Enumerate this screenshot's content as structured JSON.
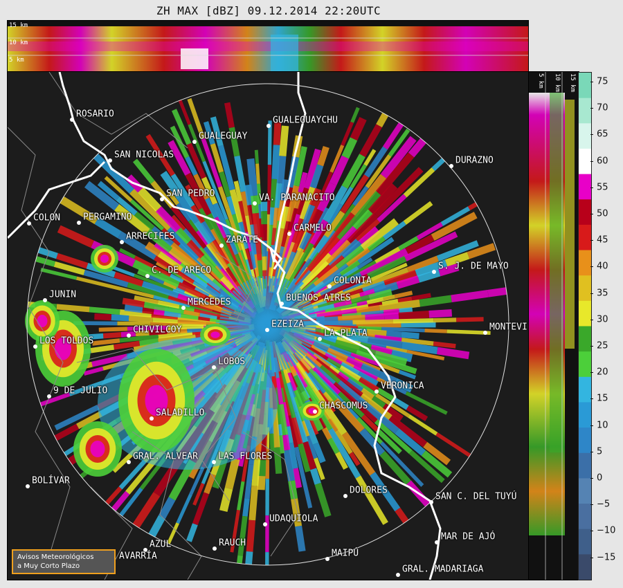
{
  "title": "ZH MAX [dBZ] 09.12.2014 22:20UTC",
  "top_altitudes": [
    "15 km",
    "10 km",
    "5 km"
  ],
  "side_altitudes": [
    "5 km",
    "10 km",
    "15 km"
  ],
  "colorbar_ticks": [
    "75",
    "70",
    "65",
    "60",
    "55",
    "50",
    "45",
    "40",
    "35",
    "30",
    "25",
    "20",
    "15",
    "10",
    "5",
    "0",
    "−5",
    "−10",
    "−15"
  ],
  "colorbar_colors": {
    "c-20": "#3a4a6a",
    "c-15": "#3f5f8a",
    "c-10": "#4a6fa0",
    "c-5": "#5583b3",
    "c0": "#3b6fa8",
    "c5": "#2e86c8",
    "c10": "#2a9ad6",
    "c15": "#33b5e0",
    "c20": "#4ccf3a",
    "c25": "#3aa82a",
    "c30": "#e8e82a",
    "c35": "#e0c020",
    "c40": "#e8901a",
    "c45": "#d81a1a",
    "c50": "#b8001a",
    "c55": "#e800c8",
    "c60": "#ffffff",
    "c65": "#d8f5ec",
    "c70": "#a8e8d0",
    "c75": "#7ad8b8"
  },
  "cities": [
    {
      "name": "ROSARIO"
    },
    {
      "name": "GUALEGUAYCHU"
    },
    {
      "name": "GUALEGUAY"
    },
    {
      "name": "SAN NICOLAS"
    },
    {
      "name": "DURAZNO"
    },
    {
      "name": "SAN PEDRO"
    },
    {
      "name": "VA. PARANACITO"
    },
    {
      "name": "COLON"
    },
    {
      "name": "PERGAMINO"
    },
    {
      "name": "CARMELO"
    },
    {
      "name": "ARRECIFES"
    },
    {
      "name": "ZARATE"
    },
    {
      "name": "S. J. DE MAYO"
    },
    {
      "name": "C. DE ARECO"
    },
    {
      "name": "COLONIA"
    },
    {
      "name": "JUNIN"
    },
    {
      "name": "BUENOS AIRES"
    },
    {
      "name": "MERCEDES"
    },
    {
      "name": "EZEIZA"
    },
    {
      "name": "MONTEVI"
    },
    {
      "name": "CHIVILCOY"
    },
    {
      "name": "LA PLATA"
    },
    {
      "name": "LOS TOLDOS"
    },
    {
      "name": "LOBOS"
    },
    {
      "name": "VERONICA"
    },
    {
      "name": "9 DE JULIO"
    },
    {
      "name": "CHASCOMUS"
    },
    {
      "name": "SALADILLO"
    },
    {
      "name": "GRAL. ALVEAR"
    },
    {
      "name": "LAS FLORES"
    },
    {
      "name": "BOLÍVAR"
    },
    {
      "name": "DOLORES"
    },
    {
      "name": "SAN C. DEL TUYÚ"
    },
    {
      "name": "UDAQUIOLA"
    },
    {
      "name": "AZUL"
    },
    {
      "name": "RAUCH"
    },
    {
      "name": "MAR DE AJÓ"
    },
    {
      "name": "AVARRÍA"
    },
    {
      "name": "MAIPÚ"
    },
    {
      "name": "GRAL. MADARIAGA"
    }
  ],
  "logo": {
    "line1": "Avisos Meteorológicos",
    "line2": "a Muy Corto Plazo"
  }
}
